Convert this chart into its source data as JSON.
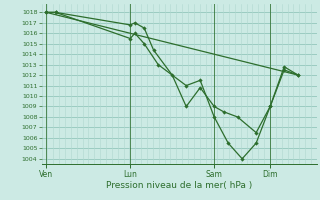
{
  "xlabel": "Pression niveau de la mer( hPa )",
  "bg_color": "#cceae4",
  "grid_color_minor": "#b0d8d0",
  "grid_color_major": "#88c0b4",
  "line_color": "#2d6e2d",
  "ylim": [
    1003.5,
    1018.8
  ],
  "yticks": [
    1004,
    1005,
    1006,
    1007,
    1008,
    1009,
    1010,
    1011,
    1012,
    1013,
    1014,
    1015,
    1016,
    1017,
    1018
  ],
  "xtick_labels": [
    "Ven",
    "Lun",
    "Sam",
    "Dim"
  ],
  "xtick_positions": [
    0,
    36,
    72,
    96
  ],
  "xlim": [
    -2,
    116
  ],
  "vline_x": [
    0,
    36,
    72,
    96
  ],
  "series1_x": [
    0,
    4,
    36,
    38,
    42,
    46,
    54,
    60,
    66,
    72,
    76,
    82,
    90,
    96,
    102,
    108
  ],
  "series1_y": [
    1018,
    1018,
    1016.8,
    1017,
    1016.5,
    1014.4,
    1012,
    1009,
    1010.8,
    1009,
    1008.5,
    1008,
    1006.5,
    1009,
    1012.8,
    1012
  ],
  "series2_x": [
    0,
    4,
    36,
    38,
    42,
    48,
    60,
    66,
    72,
    78,
    84,
    90,
    96,
    102,
    108
  ],
  "series2_y": [
    1018,
    1018,
    1015.5,
    1016,
    1015,
    1013,
    1011,
    1011.5,
    1008,
    1005.5,
    1004,
    1005.5,
    1009,
    1012.5,
    1012
  ],
  "series3_x": [
    0,
    108
  ],
  "series3_y": [
    1018,
    1012
  ],
  "n_vgrid": 48
}
